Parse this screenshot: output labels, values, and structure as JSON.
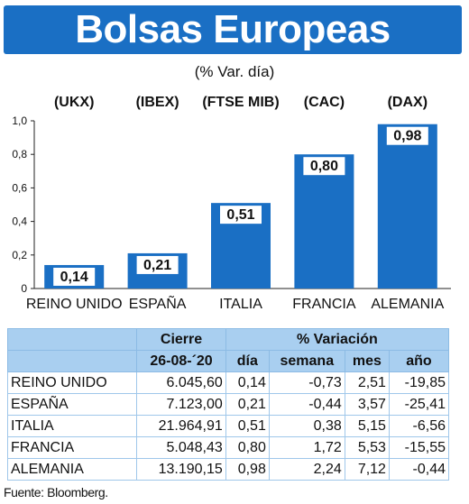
{
  "header": {
    "title": "Bolsas Europeas",
    "subtitle": "(% Var. día)"
  },
  "chart_data": {
    "type": "bar",
    "categories": [
      "REINO UNIDO",
      "ESPAÑA",
      "ITALIA",
      "FRANCIA",
      "ALEMANIA"
    ],
    "index_labels": [
      "(UKX)",
      "(IBEX)",
      "(FTSE MIB)",
      "(CAC)",
      "(DAX)"
    ],
    "values": [
      0.14,
      0.21,
      0.51,
      0.8,
      0.98
    ],
    "value_labels": [
      "0,14",
      "0,21",
      "0,51",
      "0,80",
      "0,98"
    ],
    "ylim": [
      0,
      1.0
    ],
    "yticks": [
      0,
      0.2,
      0.4,
      0.6,
      0.8,
      1.0
    ],
    "ytick_labels": [
      "0",
      "0,2",
      "0,4",
      "0,6",
      "0,8",
      "1,0"
    ],
    "grid": false,
    "bar_color": "#1a6fc4"
  },
  "table": {
    "group_headers": [
      "Cierre",
      "% Variación"
    ],
    "columns": [
      "26-08-´20",
      "día",
      "semana",
      "mes",
      "año"
    ],
    "rows": [
      {
        "name": "REINO UNIDO",
        "cierre": "6.045,60",
        "dia": "0,14",
        "semana": "-0,73",
        "mes": "2,51",
        "ano": "-19,85"
      },
      {
        "name": "ESPAÑA",
        "cierre": "7.123,00",
        "dia": "0,21",
        "semana": "-0,44",
        "mes": "3,57",
        "ano": "-25,41"
      },
      {
        "name": "ITALIA",
        "cierre": "21.964,91",
        "dia": "0,51",
        "semana": "0,38",
        "mes": "5,15",
        "ano": "-6,56"
      },
      {
        "name": "FRANCIA",
        "cierre": "5.048,43",
        "dia": "0,80",
        "semana": "1,72",
        "mes": "5,53",
        "ano": "-15,55"
      },
      {
        "name": "ALEMANIA",
        "cierre": "13.190,15",
        "dia": "0,98",
        "semana": "2,24",
        "mes": "7,12",
        "ano": "-0,44"
      }
    ]
  },
  "source": "Fuente: Bloomberg.",
  "colors": {
    "brand_blue": "#1a6fc4",
    "table_header": "#a9cff0"
  }
}
